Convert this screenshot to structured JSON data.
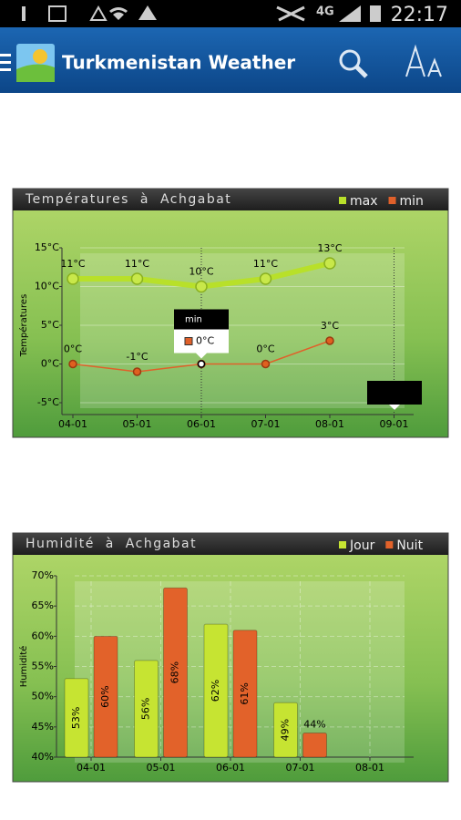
{
  "status_bar": {
    "network": "4G",
    "time": "22:17"
  },
  "app_bar": {
    "title": "Turkmenistan Weather"
  },
  "chart_data": [
    {
      "type": "line",
      "title": "Températures à Achgabat",
      "y_label": "Températures",
      "categories": [
        "04-01",
        "05-01",
        "06-01",
        "07-01",
        "08-01",
        "09-01"
      ],
      "series": [
        {
          "name": "max",
          "color": "#b8e02a",
          "values": [
            11,
            11,
            10,
            11,
            13,
            null
          ],
          "value_labels": [
            "11°C",
            "11°C",
            "10°C",
            "11°C",
            "13°C",
            null
          ]
        },
        {
          "name": "min",
          "color": "#e0602a",
          "values": [
            0,
            -1,
            0,
            0,
            3,
            null
          ],
          "value_labels": [
            "0°C",
            "-1°C",
            "0°C",
            "0°C",
            "3°C",
            null
          ]
        }
      ],
      "ylim": [
        -5,
        15
      ],
      "yticks": [
        {
          "value": -5,
          "label": "-5°C"
        },
        {
          "value": 0,
          "label": "0°C"
        },
        {
          "value": 5,
          "label": "5°C"
        },
        {
          "value": 10,
          "label": "10°C"
        },
        {
          "value": 15,
          "label": "15°C"
        }
      ],
      "grid": true
    },
    {
      "type": "bar",
      "title": "Humidité à Achgabat",
      "y_label": "Humidité",
      "categories": [
        "04-01",
        "05-01",
        "06-01",
        "07-01",
        "08-01"
      ],
      "series": [
        {
          "name": "Jour",
          "color": "#c6e432",
          "values": [
            53,
            56,
            62,
            49,
            null
          ],
          "value_labels": [
            "53%",
            "56%",
            "62%",
            "49%",
            null
          ]
        },
        {
          "name": "Nuit",
          "color": "#e2622a",
          "values": [
            60,
            68,
            61,
            44,
            null
          ],
          "value_labels": [
            "60%",
            "68%",
            "61%",
            "44%",
            null
          ]
        }
      ],
      "ylim": [
        40,
        70
      ],
      "yticks": [
        {
          "value": 40,
          "label": "40%"
        },
        {
          "value": 45,
          "label": "45%"
        },
        {
          "value": 50,
          "label": "50%"
        },
        {
          "value": 55,
          "label": "55%"
        },
        {
          "value": 60,
          "label": "60%"
        },
        {
          "value": 65,
          "label": "65%"
        },
        {
          "value": 70,
          "label": "70%"
        }
      ],
      "grid": true
    }
  ]
}
